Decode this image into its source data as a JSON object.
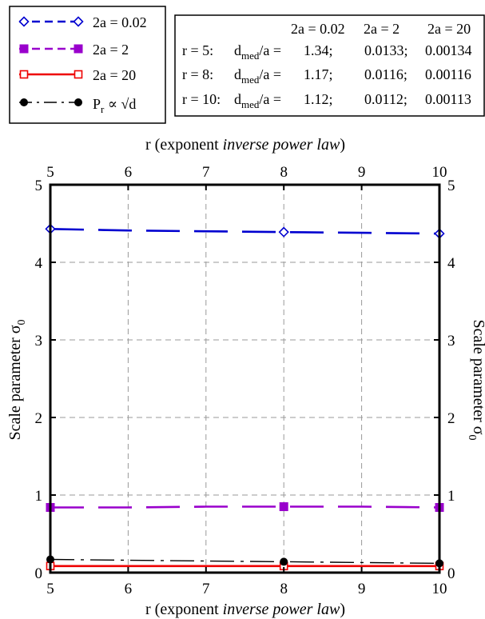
{
  "chart_data": {
    "type": "line",
    "xlabel_prefix": "r (exponent ",
    "xlabel_italic": "inverse power law",
    "xlabel_suffix": ")",
    "ylabel": "Scale parameter σ",
    "ylabel_sub": "0",
    "xlim": [
      5,
      10
    ],
    "ylim": [
      0,
      5
    ],
    "xticks": [
      "5",
      "6",
      "7",
      "8",
      "9",
      "10"
    ],
    "yticks": [
      "0",
      "1",
      "2",
      "3",
      "4",
      "5"
    ],
    "grid": true,
    "legend_position": "top-left",
    "series": [
      {
        "key": "s1",
        "name": "2a = 0.02",
        "color": "#0000d0",
        "style": "dashed",
        "marker": "diamond-open",
        "x": [
          5,
          6,
          7,
          8,
          9,
          10
        ],
        "y": [
          4.43,
          4.41,
          4.4,
          4.39,
          4.38,
          4.37
        ],
        "marker_x": [
          5,
          8,
          10
        ]
      },
      {
        "key": "s2",
        "name": "2a = 2",
        "color": "#9900cc",
        "style": "dashed",
        "marker": "square-filled",
        "x": [
          5,
          6,
          7,
          8,
          9,
          10
        ],
        "y": [
          0.84,
          0.84,
          0.85,
          0.85,
          0.85,
          0.84
        ],
        "marker_x": [
          5,
          8,
          10
        ]
      },
      {
        "key": "s3",
        "name": "2a = 20",
        "color": "#ee0000",
        "style": "solid",
        "marker": "square-open",
        "x": [
          5,
          6,
          7,
          8,
          9,
          10
        ],
        "y": [
          0.085,
          0.085,
          0.085,
          0.085,
          0.085,
          0.085
        ],
        "marker_x": [
          5,
          8,
          10
        ]
      },
      {
        "key": "s4",
        "name_main": "P",
        "name_sub": "r",
        "name_rest": " ∝ √d",
        "color": "#000000",
        "style": "dashdot",
        "marker": "circle-filled",
        "x": [
          5,
          6,
          7,
          8,
          9,
          10
        ],
        "y": [
          0.17,
          0.16,
          0.15,
          0.14,
          0.13,
          0.12
        ],
        "marker_x": [
          5,
          8,
          10
        ]
      }
    ],
    "table": {
      "header": [
        "2a = 0.02",
        "2a = 2",
        "2a = 20"
      ],
      "rows": [
        {
          "r": "r = 5:",
          "values": [
            "1.34;",
            "0.0133;",
            "0.00134"
          ]
        },
        {
          "r": "r = 8:",
          "values": [
            "1.17;",
            "0.0116;",
            "0.00116"
          ]
        },
        {
          "r": "r = 10:",
          "values": [
            "1.12;",
            "0.0112;",
            "0.00113"
          ]
        }
      ],
      "label_main": "d",
      "label_sub": "med",
      "label_rest": "/a ="
    }
  }
}
